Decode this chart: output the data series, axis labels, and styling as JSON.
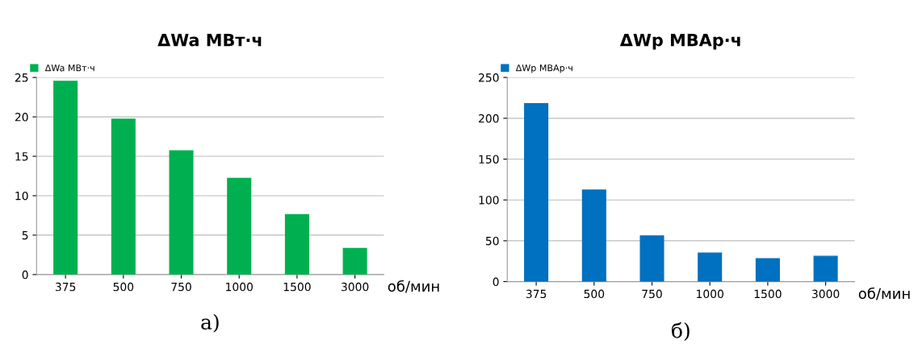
{
  "chart_data": [
    {
      "type": "bar",
      "title": "ΔWa МВт·ч",
      "xlabel": "об/мин",
      "categories": [
        "375",
        "500",
        "750",
        "1000",
        "1500",
        "3000"
      ],
      "series": [
        {
          "name": "ΔWa МВт·ч",
          "color": "#00b050",
          "values": [
            24.5,
            19.7,
            15.7,
            12.2,
            7.6,
            3.3
          ]
        }
      ],
      "ylim": [
        0,
        25
      ],
      "yticks": [
        0,
        5,
        10,
        15,
        20,
        25
      ],
      "grid": "y",
      "legend": "top left",
      "annotations": [
        "а)"
      ]
    },
    {
      "type": "bar",
      "title": "ΔWp МВАр·ч",
      "xlabel": "об/мин",
      "categories": [
        "375",
        "500",
        "750",
        "1000",
        "1500",
        "3000"
      ],
      "series": [
        {
          "name": "ΔWp МВАр·ч",
          "color": "#0070c0",
          "values": [
            218,
            112,
            56,
            35,
            28,
            31
          ]
        }
      ],
      "ylim": [
        0,
        250
      ],
      "yticks": [
        0,
        50,
        100,
        150,
        200,
        250
      ],
      "grid": "y",
      "legend": "top left",
      "annotations": [
        "б)"
      ]
    }
  ]
}
